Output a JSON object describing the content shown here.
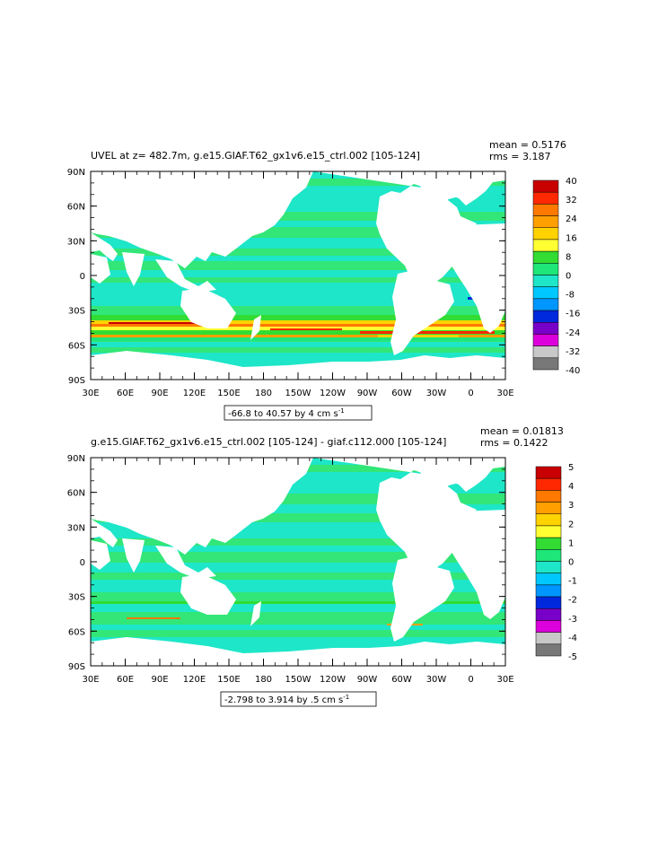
{
  "panels": [
    {
      "title": "UVEL at z= 482.7m, g.e15.GIAF.T62_gx1v6.e15_ctrl.002 [105-124]",
      "mean": "mean = 0.5176",
      "rms": "rms = 3.187",
      "range_text": "-66.8 to 40.57 by 4 cm s",
      "range_exp": "-1",
      "colorbar_labels": [
        "40",
        "32",
        "24",
        "16",
        "8",
        "0",
        "-8",
        "-16",
        "-24",
        "-32",
        "-40"
      ]
    },
    {
      "title": "g.e15.GIAF.T62_gx1v6.e15_ctrl.002 [105-124] - giaf.c112.000 [105-124]",
      "mean": "mean = 0.01813",
      "rms": "rms = 0.1422",
      "range_text": "-2.798 to 3.914 by .5 cm s",
      "range_exp": "-1",
      "colorbar_labels": [
        "5",
        "4",
        "3",
        "2",
        "1",
        "0",
        "-1",
        "-2",
        "-3",
        "-4",
        "-5"
      ]
    }
  ],
  "lat_labels": [
    "90N",
    "60N",
    "30N",
    "0",
    "30S",
    "60S",
    "90S"
  ],
  "lon_labels": [
    "30E",
    "60E",
    "90E",
    "120E",
    "150E",
    "180",
    "150W",
    "120W",
    "90W",
    "60W",
    "30W",
    "0",
    "30E"
  ],
  "colors": {
    "ocean_base": "#1ee6c8",
    "ocean_band": "#32e678",
    "land": "#ffffff"
  },
  "colorbar_colors_top_to_bottom": [
    "#c80000",
    "#ff2800",
    "#ff7800",
    "#ffa000",
    "#ffd200",
    "#ffff32",
    "#32dc32",
    "#1ee678",
    "#1ee6c8",
    "#00c8ff",
    "#0096ff",
    "#0028dc",
    "#7800c8",
    "#dc00dc",
    "#c8c8c8",
    "#787878"
  ]
}
